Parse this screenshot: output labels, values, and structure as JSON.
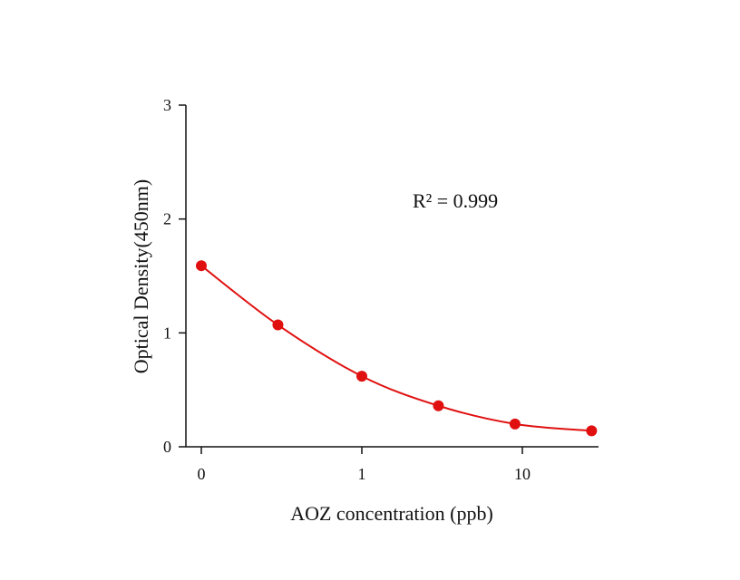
{
  "chart_data": {
    "type": "scatter",
    "title": "",
    "xlabel": "AOZ concentration (ppb)",
    "ylabel": "Optical Density(450nm)",
    "x_scale": "log",
    "x_ticks": [
      "0",
      "1",
      "10"
    ],
    "y_ticks": [
      "0",
      "1",
      "2",
      "3"
    ],
    "ylim": [
      0,
      3
    ],
    "grid": false,
    "annotation": "R² = 0.999",
    "colors": {
      "series": "#e01010",
      "axis": "#111111"
    },
    "series": [
      {
        "x": [
          0.1,
          0.3,
          1,
          3,
          9,
          27
        ],
        "y": [
          1.59,
          1.07,
          0.62,
          0.36,
          0.2,
          0.14
        ],
        "fit_curve": true
      }
    ]
  }
}
